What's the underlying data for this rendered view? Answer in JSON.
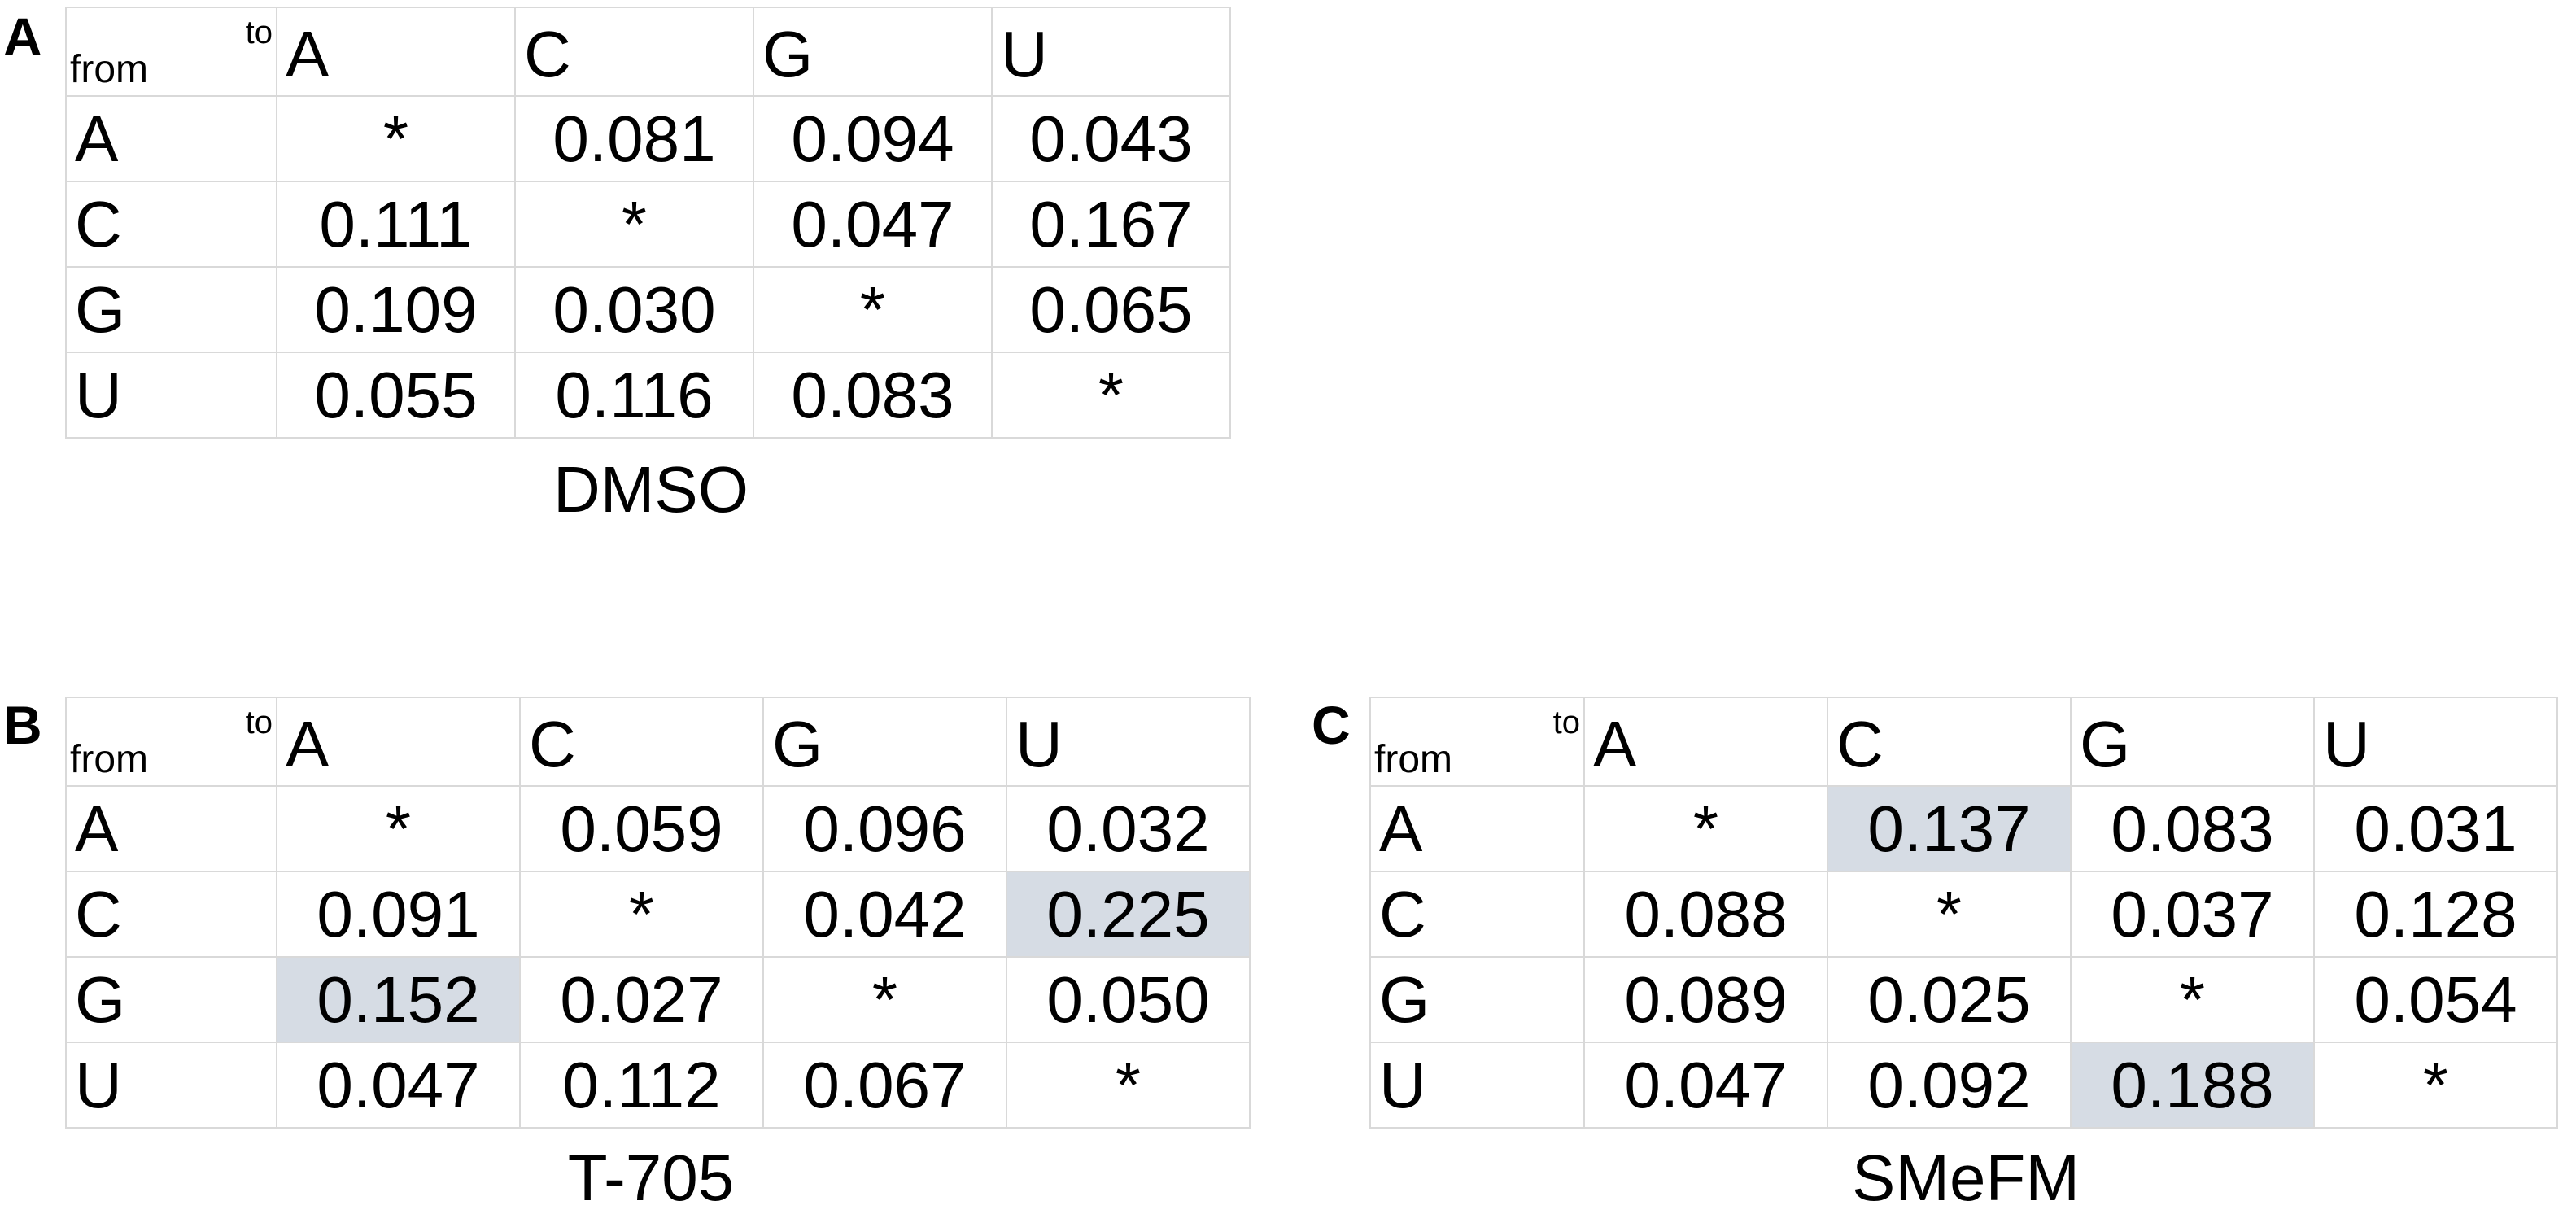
{
  "panels": [
    {
      "label": "A",
      "corner_to": "to",
      "corner_from": "from",
      "columns": [
        "A",
        "C",
        "G",
        "U"
      ],
      "rows": [
        {
          "label": "A",
          "cells": [
            "*",
            "0.081",
            "0.094",
            "0.043"
          ]
        },
        {
          "label": "C",
          "cells": [
            "0.111",
            "*",
            "0.047",
            "0.167"
          ]
        },
        {
          "label": "G",
          "cells": [
            "0.109",
            "0.030",
            "*",
            "0.065"
          ]
        },
        {
          "label": "U",
          "cells": [
            "0.055",
            "0.116",
            "0.083",
            "*"
          ]
        }
      ],
      "highlighted": [],
      "caption": "DMSO"
    },
    {
      "label": "B",
      "corner_to": "to",
      "corner_from": "from",
      "columns": [
        "A",
        "C",
        "G",
        "U"
      ],
      "rows": [
        {
          "label": "A",
          "cells": [
            "*",
            "0.059",
            "0.096",
            "0.032"
          ]
        },
        {
          "label": "C",
          "cells": [
            "0.091",
            "*",
            "0.042",
            "0.225"
          ]
        },
        {
          "label": "G",
          "cells": [
            "0.152",
            "0.027",
            "*",
            "0.050"
          ]
        },
        {
          "label": "U",
          "cells": [
            "0.047",
            "0.112",
            "0.067",
            "*"
          ]
        }
      ],
      "highlighted": [
        [
          1,
          3
        ],
        [
          2,
          0
        ]
      ],
      "caption": "T-705"
    },
    {
      "label": "C",
      "corner_to": "to",
      "corner_from": "from",
      "columns": [
        "A",
        "C",
        "G",
        "U"
      ],
      "rows": [
        {
          "label": "A",
          "cells": [
            "*",
            "0.137",
            "0.083",
            "0.031"
          ]
        },
        {
          "label": "C",
          "cells": [
            "0.088",
            "*",
            "0.037",
            "0.128"
          ]
        },
        {
          "label": "G",
          "cells": [
            "0.089",
            "0.025",
            "*",
            "0.054"
          ]
        },
        {
          "label": "U",
          "cells": [
            "0.047",
            "0.092",
            "0.188",
            "*"
          ]
        }
      ],
      "highlighted": [
        [
          0,
          1
        ],
        [
          3,
          2
        ]
      ],
      "caption": "SMeFM"
    }
  ]
}
